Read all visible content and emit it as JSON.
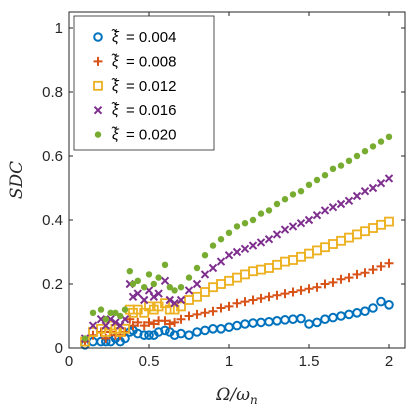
{
  "chart_data": {
    "type": "scatter",
    "xlabel": "Ω/ω",
    "xlabel_sub": "n",
    "ylabel": "SDC",
    "xlim": [
      0,
      2.1
    ],
    "ylim": [
      0,
      1.05
    ],
    "xticks": [
      0,
      0.5,
      1,
      1.5,
      2
    ],
    "xtick_labels": [
      "0",
      "0.5",
      "1",
      "1.5",
      "2"
    ],
    "yticks": [
      0,
      0.2,
      0.4,
      0.6,
      0.8,
      1
    ],
    "ytick_labels": [
      "0",
      "0.2",
      "0.4",
      "0.6",
      "0.8",
      "1"
    ],
    "grid": false,
    "legend_position": "top-left",
    "legend_symbol": "ξ̃",
    "x": [
      0.1,
      0.15,
      0.2,
      0.23,
      0.26,
      0.29,
      0.32,
      0.35,
      0.38,
      0.4,
      0.43,
      0.47,
      0.5,
      0.53,
      0.56,
      0.6,
      0.63,
      0.66,
      0.7,
      0.75,
      0.8,
      0.85,
      0.9,
      0.95,
      1.0,
      1.05,
      1.1,
      1.15,
      1.2,
      1.25,
      1.3,
      1.35,
      1.4,
      1.45,
      1.5,
      1.55,
      1.6,
      1.65,
      1.7,
      1.75,
      1.8,
      1.85,
      1.9,
      1.95,
      2.0
    ],
    "series": [
      {
        "name": "= 0.004",
        "marker": "circle",
        "color": "#0072BD",
        "values": [
          0.01,
          0.02,
          0.02,
          0.02,
          0.02,
          0.03,
          0.02,
          0.03,
          0.05,
          0.055,
          0.045,
          0.04,
          0.04,
          0.04,
          0.05,
          0.055,
          0.05,
          0.04,
          0.045,
          0.04,
          0.05,
          0.055,
          0.06,
          0.06,
          0.065,
          0.07,
          0.075,
          0.078,
          0.08,
          0.082,
          0.085,
          0.088,
          0.09,
          0.092,
          0.075,
          0.08,
          0.09,
          0.095,
          0.1,
          0.105,
          0.11,
          0.115,
          0.125,
          0.145,
          0.135
        ]
      },
      {
        "name": "= 0.008",
        "marker": "plus",
        "color": "#D95319",
        "values": [
          0.02,
          0.04,
          0.05,
          0.03,
          0.05,
          0.04,
          0.04,
          0.05,
          0.09,
          0.07,
          0.08,
          0.07,
          0.08,
          0.075,
          0.085,
          0.085,
          0.075,
          0.08,
          0.09,
          0.1,
          0.105,
          0.11,
          0.115,
          0.125,
          0.13,
          0.14,
          0.145,
          0.15,
          0.155,
          0.16,
          0.165,
          0.17,
          0.175,
          0.18,
          0.185,
          0.19,
          0.2,
          0.205,
          0.215,
          0.22,
          0.23,
          0.235,
          0.245,
          0.255,
          0.265
        ]
      },
      {
        "name": "= 0.012",
        "marker": "square",
        "color": "#EDB120",
        "values": [
          0.02,
          0.05,
          0.06,
          0.05,
          0.07,
          0.06,
          0.05,
          0.06,
          0.12,
          0.11,
          0.12,
          0.11,
          0.13,
          0.12,
          0.13,
          0.14,
          0.12,
          0.12,
          0.13,
          0.15,
          0.16,
          0.175,
          0.19,
          0.2,
          0.21,
          0.22,
          0.23,
          0.24,
          0.245,
          0.25,
          0.26,
          0.27,
          0.275,
          0.285,
          0.295,
          0.305,
          0.315,
          0.325,
          0.335,
          0.345,
          0.355,
          0.365,
          0.375,
          0.385,
          0.395
        ]
      },
      {
        "name": "= 0.016",
        "marker": "x",
        "color": "#7E2F8E",
        "values": [
          0.03,
          0.07,
          0.09,
          0.07,
          0.09,
          0.08,
          0.07,
          0.09,
          0.2,
          0.16,
          0.17,
          0.15,
          0.18,
          0.16,
          0.17,
          0.21,
          0.15,
          0.14,
          0.15,
          0.18,
          0.2,
          0.23,
          0.25,
          0.27,
          0.29,
          0.3,
          0.31,
          0.32,
          0.33,
          0.34,
          0.355,
          0.37,
          0.38,
          0.39,
          0.4,
          0.415,
          0.43,
          0.44,
          0.45,
          0.46,
          0.475,
          0.49,
          0.5,
          0.515,
          0.53
        ]
      },
      {
        "name": "= 0.020",
        "marker": "dot",
        "color": "#77AC30",
        "values": [
          0.03,
          0.11,
          0.12,
          0.09,
          0.11,
          0.11,
          0.1,
          0.12,
          0.24,
          0.2,
          0.21,
          0.19,
          0.23,
          0.2,
          0.22,
          0.26,
          0.19,
          0.18,
          0.19,
          0.22,
          0.25,
          0.29,
          0.32,
          0.34,
          0.36,
          0.38,
          0.39,
          0.4,
          0.42,
          0.43,
          0.45,
          0.465,
          0.48,
          0.49,
          0.51,
          0.525,
          0.54,
          0.56,
          0.57,
          0.585,
          0.6,
          0.615,
          0.63,
          0.645,
          0.66
        ]
      }
    ]
  }
}
